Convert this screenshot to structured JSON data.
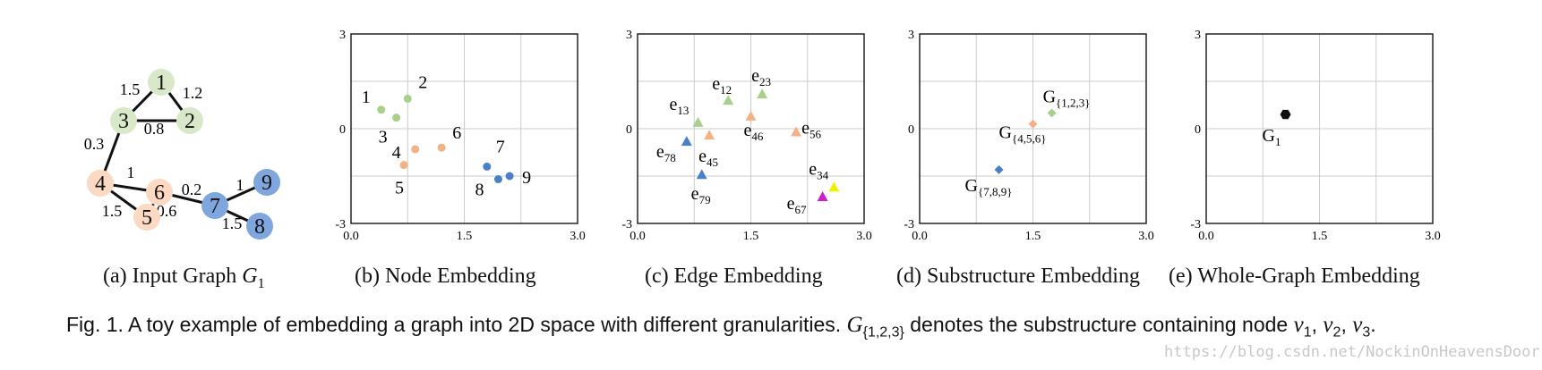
{
  "subfigures": [
    {
      "label": "(a) Input Graph ",
      "math": "G",
      "sub": "1"
    },
    {
      "label": "(b) Node Embedding"
    },
    {
      "label": "(c) Edge Embedding"
    },
    {
      "label": "(d) Substructure Embedding"
    },
    {
      "label": "(e) Whole-Graph Embedding"
    }
  ],
  "input_graph": {
    "nodes": [
      {
        "id": "1",
        "group": "green"
      },
      {
        "id": "2",
        "group": "green"
      },
      {
        "id": "3",
        "group": "green"
      },
      {
        "id": "4",
        "group": "orange"
      },
      {
        "id": "5",
        "group": "orange"
      },
      {
        "id": "6",
        "group": "orange"
      },
      {
        "id": "7",
        "group": "blue"
      },
      {
        "id": "8",
        "group": "blue"
      },
      {
        "id": "9",
        "group": "blue"
      }
    ],
    "edges": [
      {
        "from": "1",
        "to": "3",
        "weight": "1.5"
      },
      {
        "from": "1",
        "to": "2",
        "weight": "1.2"
      },
      {
        "from": "3",
        "to": "2",
        "weight": "0.8"
      },
      {
        "from": "3",
        "to": "4",
        "weight": "0.3"
      },
      {
        "from": "4",
        "to": "6",
        "weight": "1"
      },
      {
        "from": "4",
        "to": "5",
        "weight": "1.5"
      },
      {
        "from": "5",
        "to": "6",
        "weight": "0.6"
      },
      {
        "from": "6",
        "to": "7",
        "weight": "0.2"
      },
      {
        "from": "7",
        "to": "9",
        "weight": "1"
      },
      {
        "from": "7",
        "to": "8",
        "weight": "1.5"
      }
    ]
  },
  "colors": {
    "green": "#a9cf8c",
    "orange": "#f4b183",
    "blue": "#4a7fc9",
    "green_light": "#d8e8c8",
    "orange_light": "#fbd9c2",
    "blue_light": "#7fa6dd",
    "magenta": "#d020c8",
    "yellow": "#f0f000",
    "black": "#111111"
  },
  "chart_data": [
    {
      "type": "scatter",
      "panel": "node",
      "xlim": [
        0,
        3
      ],
      "ylim": [
        -3,
        3
      ],
      "xticks": [
        "0.0",
        "1.5",
        "3.0"
      ],
      "yticks": [
        "3",
        "0",
        "-3"
      ],
      "grid": true,
      "points": [
        {
          "label": "1",
          "x": 0.4,
          "y": 0.6,
          "color": "green",
          "shape": "circle"
        },
        {
          "label": "2",
          "x": 0.75,
          "y": 0.95,
          "color": "green",
          "shape": "circle"
        },
        {
          "label": "3",
          "x": 0.6,
          "y": 0.35,
          "color": "green",
          "shape": "circle"
        },
        {
          "label": "4",
          "x": 0.85,
          "y": -0.65,
          "color": "orange",
          "shape": "circle"
        },
        {
          "label": "5",
          "x": 0.7,
          "y": -1.15,
          "color": "orange",
          "shape": "circle"
        },
        {
          "label": "6",
          "x": 1.2,
          "y": -0.6,
          "color": "orange",
          "shape": "circle"
        },
        {
          "label": "7",
          "x": 1.8,
          "y": -1.2,
          "color": "blue",
          "shape": "circle"
        },
        {
          "label": "8",
          "x": 1.95,
          "y": -1.6,
          "color": "blue",
          "shape": "circle"
        },
        {
          "label": "9",
          "x": 2.1,
          "y": -1.5,
          "color": "blue",
          "shape": "circle"
        }
      ]
    },
    {
      "type": "scatter",
      "panel": "edge",
      "xlim": [
        0,
        3
      ],
      "ylim": [
        -3,
        3
      ],
      "xticks": [
        "0.0",
        "1.5",
        "3.0"
      ],
      "yticks": [
        "3",
        "0",
        "-3"
      ],
      "grid": true,
      "points": [
        {
          "label": "e",
          "sub": "12",
          "x": 1.2,
          "y": 0.9,
          "color": "green",
          "shape": "triangle"
        },
        {
          "label": "e",
          "sub": "23",
          "x": 1.65,
          "y": 1.1,
          "color": "green",
          "shape": "triangle"
        },
        {
          "label": "e",
          "sub": "13",
          "x": 0.8,
          "y": 0.2,
          "color": "green",
          "shape": "triangle"
        },
        {
          "label": "e",
          "sub": "46",
          "x": 1.5,
          "y": 0.4,
          "color": "orange",
          "shape": "triangle"
        },
        {
          "label": "e",
          "sub": "45",
          "x": 0.95,
          "y": -0.2,
          "color": "orange",
          "shape": "triangle"
        },
        {
          "label": "e",
          "sub": "56",
          "x": 2.1,
          "y": -0.1,
          "color": "orange",
          "shape": "triangle"
        },
        {
          "label": "e",
          "sub": "78",
          "x": 0.65,
          "y": -0.4,
          "color": "blue",
          "shape": "triangle"
        },
        {
          "label": "e",
          "sub": "79",
          "x": 0.85,
          "y": -1.45,
          "color": "blue",
          "shape": "triangle"
        },
        {
          "label": "e",
          "sub": "34",
          "x": 2.6,
          "y": -1.85,
          "color": "yellow",
          "shape": "triangle"
        },
        {
          "label": "e",
          "sub": "67",
          "x": 2.45,
          "y": -2.15,
          "color": "magenta",
          "shape": "triangle"
        }
      ]
    },
    {
      "type": "scatter",
      "panel": "substructure",
      "xlim": [
        0,
        3
      ],
      "ylim": [
        -3,
        3
      ],
      "xticks": [
        "0.0",
        "1.5",
        "3.0"
      ],
      "yticks": [
        "3",
        "0",
        "-3"
      ],
      "grid": true,
      "points": [
        {
          "label": "G",
          "sub": "{1,2,3}",
          "x": 1.75,
          "y": 0.5,
          "color": "green",
          "shape": "diamond"
        },
        {
          "label": "G",
          "sub": "{4,5,6}",
          "x": 1.5,
          "y": 0.15,
          "color": "orange",
          "shape": "diamond"
        },
        {
          "label": "G",
          "sub": "{7,8,9}",
          "x": 1.05,
          "y": -1.3,
          "color": "blue",
          "shape": "diamond"
        }
      ]
    },
    {
      "type": "scatter",
      "panel": "whole-graph",
      "xlim": [
        0,
        3
      ],
      "ylim": [
        -3,
        3
      ],
      "xticks": [
        "0.0",
        "1.5",
        "3.0"
      ],
      "yticks": [
        "3",
        "0",
        "-3"
      ],
      "grid": true,
      "points": [
        {
          "label": "G",
          "sub": "1",
          "x": 1.05,
          "y": 0.45,
          "color": "black",
          "shape": "hexagon"
        }
      ]
    }
  ],
  "caption": {
    "prefix": "Fig. 1. A toy example of embedding a graph into 2D space with different granularities. ",
    "math": "G",
    "math_sub": "{1,2,3}",
    "middle": " denotes the substructure containing node ",
    "nodes": [
      {
        "v": "v",
        "s": "1"
      },
      {
        "v": "v",
        "s": "2"
      },
      {
        "v": "v",
        "s": "3"
      }
    ],
    "suffix": "."
  },
  "watermark": "https://blog.csdn.net/NockinOnHeavensDoor"
}
